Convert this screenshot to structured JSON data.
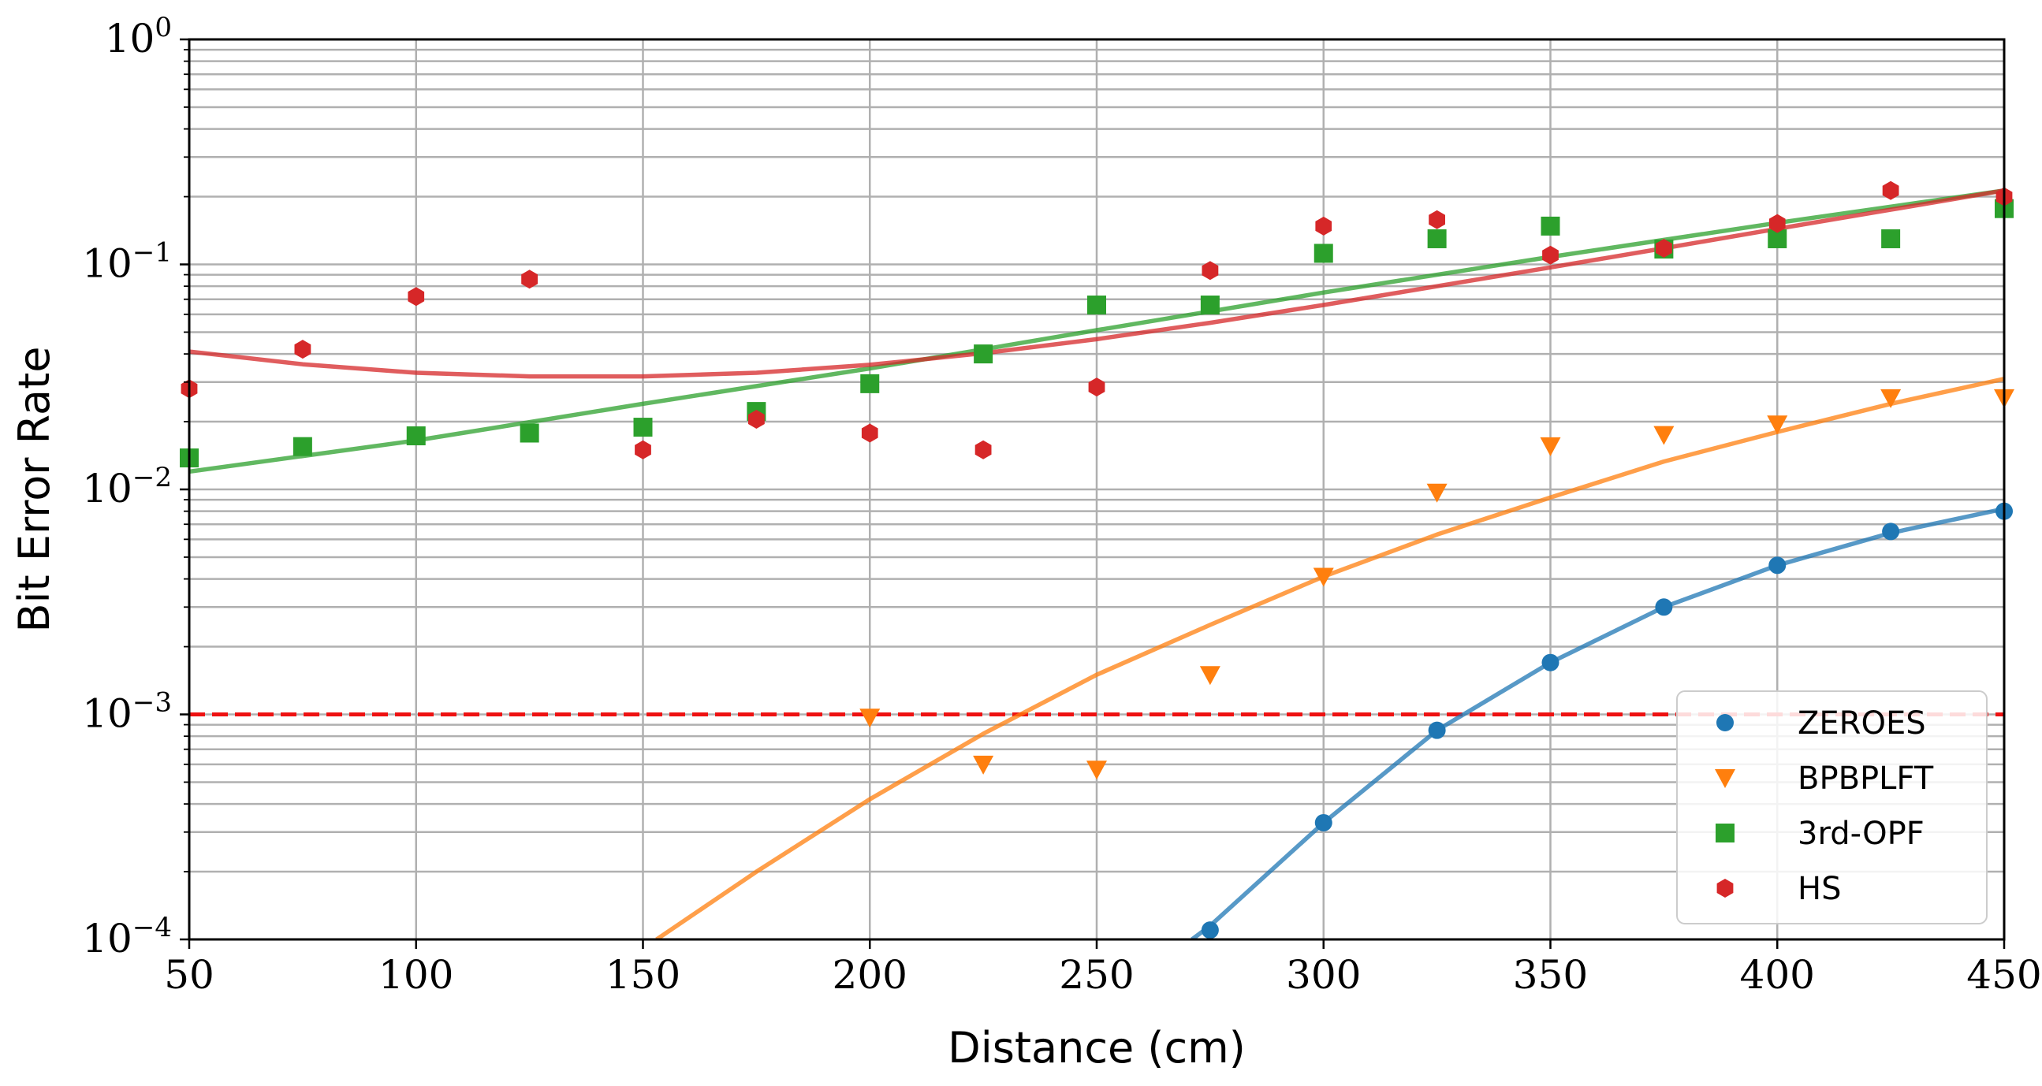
{
  "chart_data": {
    "type": "scatter",
    "title": "",
    "xlabel": "Distance (cm)",
    "ylabel": "Bit Error Rate",
    "xscale": "linear",
    "yscale": "log",
    "xlim": [
      50,
      450
    ],
    "ylim": [
      0.0001,
      1
    ],
    "xticks": [
      50,
      100,
      150,
      200,
      250,
      300,
      350,
      400,
      450
    ],
    "xtick_labels": [
      "50",
      "100",
      "150",
      "200",
      "250",
      "300",
      "350",
      "400",
      "450"
    ],
    "yticks": [
      0.0001,
      0.001,
      0.01,
      0.1,
      1
    ],
    "ytick_labels": [
      {
        "base": "10",
        "exp": "−4"
      },
      {
        "base": "10",
        "exp": "−3"
      },
      {
        "base": "10",
        "exp": "−2"
      },
      {
        "base": "10",
        "exp": "−1"
      },
      {
        "base": "10",
        "exp": "0"
      }
    ],
    "grid": true,
    "legend_position": "lower-right",
    "threshold": {
      "y": 0.001,
      "color": "#ee1111",
      "style": "dashed"
    },
    "series": [
      {
        "name": "ZEROES",
        "color": "#1f77b4",
        "marker": "circle",
        "x": [
          275,
          300,
          325,
          350,
          375,
          400,
          425,
          450
        ],
        "y": [
          0.00011,
          0.00033,
          0.00085,
          0.0017,
          0.003,
          0.0046,
          0.0065,
          0.008
        ],
        "fit": {
          "x": [
            271,
            275,
            300,
            325,
            350,
            375,
            400,
            425,
            450
          ],
          "y": [
            0.0001,
            0.000115,
            0.00033,
            0.00085,
            0.0017,
            0.003,
            0.0046,
            0.0064,
            0.0082
          ]
        }
      },
      {
        "name": "BPBPLFT",
        "color": "#ff7f0e",
        "marker": "triangle-down",
        "x": [
          200,
          225,
          250,
          275,
          300,
          325,
          350,
          375,
          400,
          425,
          450
        ],
        "y": [
          0.00097,
          0.0006,
          0.00057,
          0.0015,
          0.0041,
          0.0097,
          0.0156,
          0.0175,
          0.0195,
          0.0255,
          0.0255
        ],
        "fit": {
          "x": [
            153,
            175,
            200,
            225,
            250,
            275,
            300,
            325,
            350,
            375,
            400,
            425,
            450
          ],
          "y": [
            0.0001,
            0.0002,
            0.00042,
            0.00082,
            0.0015,
            0.0025,
            0.0041,
            0.0063,
            0.0092,
            0.0133,
            0.018,
            0.024,
            0.031
          ]
        }
      },
      {
        "name": "3rd-OPF",
        "color": "#2ca02c",
        "marker": "square",
        "x": [
          50,
          75,
          100,
          125,
          150,
          175,
          200,
          225,
          250,
          275,
          300,
          325,
          350,
          375,
          400,
          425,
          450
        ],
        "y": [
          0.0138,
          0.0155,
          0.0173,
          0.0178,
          0.0189,
          0.0222,
          0.0295,
          0.04,
          0.066,
          0.066,
          0.112,
          0.13,
          0.148,
          0.117,
          0.13,
          0.13,
          0.177
        ],
        "fit": {
          "x": [
            50,
            100,
            150,
            200,
            250,
            300,
            350,
            400,
            450
          ],
          "y": [
            0.012,
            0.0165,
            0.024,
            0.0345,
            0.051,
            0.075,
            0.108,
            0.153,
            0.213
          ]
        }
      },
      {
        "name": "HS",
        "color": "#d62728",
        "marker": "hexagon",
        "x": [
          50,
          75,
          100,
          125,
          150,
          175,
          200,
          225,
          250,
          275,
          300,
          325,
          350,
          375,
          400,
          425,
          450
        ],
        "y": [
          0.028,
          0.042,
          0.072,
          0.086,
          0.015,
          0.0205,
          0.0178,
          0.015,
          0.0285,
          0.094,
          0.148,
          0.158,
          0.11,
          0.118,
          0.152,
          0.213,
          0.2
        ],
        "fit": {
          "x": [
            50,
            75,
            100,
            125,
            150,
            175,
            200,
            225,
            250,
            275,
            300,
            325,
            350,
            375,
            400,
            425,
            450
          ],
          "y": [
            0.041,
            0.036,
            0.033,
            0.0318,
            0.0318,
            0.033,
            0.0358,
            0.0403,
            0.0465,
            0.055,
            0.066,
            0.08,
            0.097,
            0.118,
            0.144,
            0.175,
            0.213
          ]
        }
      }
    ]
  }
}
